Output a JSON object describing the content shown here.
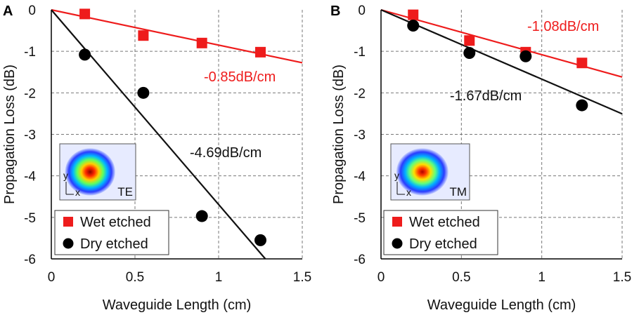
{
  "chart_data": [
    {
      "type": "scatter",
      "panel": "A",
      "xlabel": "Waveguide Length (cm)",
      "ylabel": "Propagation Loss (dB)",
      "xlim": [
        0,
        1.5
      ],
      "ylim": [
        -6,
        0
      ],
      "xticks": [
        0,
        0.5,
        1,
        1.5
      ],
      "xtick_labels": [
        "0",
        "0.5",
        "1",
        "1.5"
      ],
      "yticks": [
        0,
        -1,
        -2,
        -3,
        -4,
        -5,
        -6
      ],
      "ytick_labels": [
        "0",
        "-1",
        "-2",
        "-3",
        "-4",
        "-5",
        "-6"
      ],
      "grid": true,
      "series": [
        {
          "name": "Wet etched",
          "marker": "square",
          "color": "#ee1c1c",
          "x": [
            0.2,
            0.55,
            0.9,
            1.25
          ],
          "y": [
            -0.1,
            -0.62,
            -0.8,
            -1.02
          ],
          "fit_slope": -0.85
        },
        {
          "name": "Dry etched",
          "marker": "circle",
          "color": "#000000",
          "x": [
            0.2,
            0.55,
            0.9,
            1.25
          ],
          "y": [
            -1.08,
            -2.0,
            -4.97,
            -5.55
          ],
          "fit_slope": -4.69
        }
      ],
      "annotations": [
        {
          "text": "-0.85dB/cm",
          "color": "#ee1c1c"
        },
        {
          "text": "-4.69dB/cm",
          "color": "#111111"
        }
      ],
      "inset_label": "TE",
      "inset_axes": [
        "y",
        "x"
      ]
    },
    {
      "type": "scatter",
      "panel": "B",
      "xlabel": "Waveguide Length (cm)",
      "ylabel": "Propagation Loss (dB)",
      "xlim": [
        0,
        1.5
      ],
      "ylim": [
        -6,
        0
      ],
      "xticks": [
        0,
        0.5,
        1,
        1.5
      ],
      "xtick_labels": [
        "0",
        "0.5",
        "1",
        "1.5"
      ],
      "yticks": [
        0,
        -1,
        -2,
        -3,
        -4,
        -5,
        -6
      ],
      "ytick_labels": [
        "0",
        "-1",
        "-2",
        "-3",
        "-4",
        "-5",
        "-6"
      ],
      "grid": true,
      "series": [
        {
          "name": "Wet etched",
          "marker": "square",
          "color": "#ee1c1c",
          "x": [
            0.2,
            0.55,
            0.9,
            1.25
          ],
          "y": [
            -0.12,
            -0.74,
            -1.02,
            -1.28
          ],
          "fit_slope": -1.08
        },
        {
          "name": "Dry etched",
          "marker": "circle",
          "color": "#000000",
          "x": [
            0.2,
            0.55,
            0.9,
            1.25
          ],
          "y": [
            -0.38,
            -1.04,
            -1.12,
            -2.3
          ],
          "fit_slope": -1.67
        }
      ],
      "annotations": [
        {
          "text": "-1.08dB/cm",
          "color": "#ee1c1c"
        },
        {
          "text": "-1.67dB/cm",
          "color": "#111111"
        }
      ],
      "inset_label": "TM",
      "inset_axes": [
        "y",
        "x"
      ]
    }
  ]
}
